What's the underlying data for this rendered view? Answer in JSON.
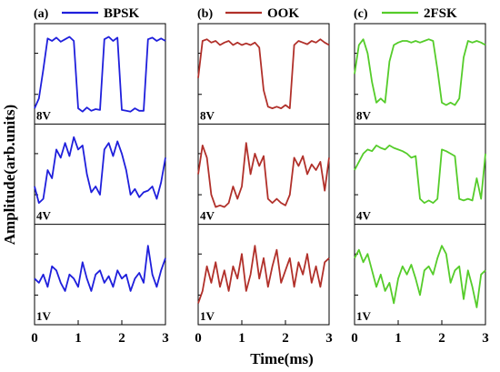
{
  "figure": {
    "ylabel": "Amplitude(arb.units)",
    "xlabel": "Time(ms)"
  },
  "chart_data": [
    {
      "type": "line",
      "panel_label": "(a)",
      "legend": "BPSK",
      "color": "#1f1fdc",
      "xlim": [
        0,
        3
      ],
      "xticks": [
        "0",
        "1",
        "2",
        "3"
      ],
      "legend_position": "top",
      "grid": false,
      "x": [
        0,
        0.1,
        0.2,
        0.3,
        0.4,
        0.5,
        0.6,
        0.7,
        0.8,
        0.9,
        1.0,
        1.1,
        1.2,
        1.3,
        1.4,
        1.5,
        1.6,
        1.7,
        1.8,
        1.9,
        2.0,
        2.1,
        2.2,
        2.3,
        2.4,
        2.5,
        2.6,
        2.7,
        2.8,
        2.9,
        3.0
      ],
      "traces": [
        {
          "label": "8V",
          "values": [
            0.08,
            0.2,
            0.55,
            0.93,
            0.9,
            0.94,
            0.89,
            0.92,
            0.95,
            0.9,
            0.08,
            0.04,
            0.09,
            0.05,
            0.07,
            0.06,
            0.92,
            0.95,
            0.9,
            0.94,
            0.06,
            0.05,
            0.04,
            0.08,
            0.05,
            0.05,
            0.92,
            0.94,
            0.9,
            0.93,
            0.9
          ]
        },
        {
          "label": "4V",
          "values": [
            0.35,
            0.15,
            0.2,
            0.55,
            0.45,
            0.8,
            0.7,
            0.88,
            0.72,
            0.95,
            0.8,
            0.85,
            0.5,
            0.28,
            0.35,
            0.25,
            0.8,
            0.88,
            0.72,
            0.9,
            0.75,
            0.55,
            0.25,
            0.32,
            0.22,
            0.28,
            0.3,
            0.35,
            0.2,
            0.4,
            0.7
          ]
        },
        {
          "label": "1V",
          "values": [
            0.45,
            0.4,
            0.5,
            0.35,
            0.6,
            0.55,
            0.4,
            0.3,
            0.5,
            0.45,
            0.35,
            0.65,
            0.45,
            0.3,
            0.5,
            0.55,
            0.4,
            0.48,
            0.35,
            0.55,
            0.45,
            0.5,
            0.3,
            0.45,
            0.52,
            0.4,
            0.85,
            0.5,
            0.35,
            0.55,
            0.7
          ]
        }
      ]
    },
    {
      "type": "line",
      "panel_label": "(b)",
      "legend": "OOK",
      "color": "#b1302a",
      "xlim": [
        0,
        3
      ],
      "xticks": [
        "0",
        "1",
        "2",
        "3"
      ],
      "legend_position": "top",
      "grid": false,
      "x": [
        0,
        0.1,
        0.2,
        0.3,
        0.4,
        0.5,
        0.6,
        0.7,
        0.8,
        0.9,
        1.0,
        1.1,
        1.2,
        1.3,
        1.4,
        1.5,
        1.6,
        1.7,
        1.8,
        1.9,
        2.0,
        2.1,
        2.2,
        2.3,
        2.4,
        2.5,
        2.6,
        2.7,
        2.8,
        2.9,
        3.0
      ],
      "traces": [
        {
          "label": "8V",
          "values": [
            0.45,
            0.9,
            0.92,
            0.88,
            0.9,
            0.85,
            0.88,
            0.9,
            0.85,
            0.88,
            0.85,
            0.87,
            0.85,
            0.88,
            0.82,
            0.3,
            0.1,
            0.08,
            0.1,
            0.08,
            0.12,
            0.08,
            0.85,
            0.9,
            0.88,
            0.86,
            0.9,
            0.88,
            0.92,
            0.88,
            0.85
          ]
        },
        {
          "label": "4V",
          "values": [
            0.5,
            0.85,
            0.7,
            0.25,
            0.1,
            0.12,
            0.1,
            0.15,
            0.35,
            0.2,
            0.35,
            0.88,
            0.5,
            0.75,
            0.6,
            0.72,
            0.2,
            0.15,
            0.2,
            0.15,
            0.12,
            0.25,
            0.7,
            0.6,
            0.72,
            0.5,
            0.62,
            0.55,
            0.65,
            0.3,
            0.7
          ]
        },
        {
          "label": "1V",
          "values": [
            0.15,
            0.3,
            0.6,
            0.4,
            0.65,
            0.35,
            0.55,
            0.3,
            0.6,
            0.45,
            0.75,
            0.3,
            0.5,
            0.85,
            0.45,
            0.7,
            0.35,
            0.6,
            0.8,
            0.4,
            0.55,
            0.7,
            0.35,
            0.65,
            0.5,
            0.75,
            0.4,
            0.6,
            0.35,
            0.65,
            0.7
          ]
        }
      ]
    },
    {
      "type": "line",
      "panel_label": "(c)",
      "legend": "2FSK",
      "color": "#55cc2a",
      "xlim": [
        0,
        3
      ],
      "xticks": [
        "0",
        "1",
        "2",
        "3"
      ],
      "legend_position": "top",
      "grid": false,
      "x": [
        0,
        0.1,
        0.2,
        0.3,
        0.4,
        0.5,
        0.6,
        0.7,
        0.8,
        0.9,
        1.0,
        1.1,
        1.2,
        1.3,
        1.4,
        1.5,
        1.6,
        1.7,
        1.8,
        1.9,
        2.0,
        2.1,
        2.2,
        2.3,
        2.4,
        2.5,
        2.6,
        2.7,
        2.8,
        2.9,
        3.0
      ],
      "traces": [
        {
          "label": "8V",
          "values": [
            0.5,
            0.85,
            0.92,
            0.75,
            0.4,
            0.15,
            0.2,
            0.15,
            0.65,
            0.85,
            0.88,
            0.9,
            0.9,
            0.88,
            0.9,
            0.88,
            0.9,
            0.92,
            0.9,
            0.55,
            0.15,
            0.12,
            0.15,
            0.12,
            0.2,
            0.7,
            0.9,
            0.88,
            0.9,
            0.88,
            0.85
          ]
        },
        {
          "label": "4V",
          "values": [
            0.55,
            0.65,
            0.75,
            0.8,
            0.78,
            0.85,
            0.82,
            0.8,
            0.85,
            0.82,
            0.8,
            0.78,
            0.75,
            0.7,
            0.72,
            0.2,
            0.15,
            0.18,
            0.15,
            0.2,
            0.8,
            0.78,
            0.75,
            0.72,
            0.2,
            0.18,
            0.2,
            0.18,
            0.45,
            0.2,
            0.75
          ]
        },
        {
          "label": "1V",
          "values": [
            0.7,
            0.8,
            0.65,
            0.75,
            0.55,
            0.35,
            0.5,
            0.3,
            0.4,
            0.15,
            0.45,
            0.6,
            0.5,
            0.62,
            0.45,
            0.25,
            0.55,
            0.6,
            0.5,
            0.7,
            0.85,
            0.75,
            0.4,
            0.55,
            0.6,
            0.2,
            0.55,
            0.35,
            0.1,
            0.5,
            0.55
          ]
        }
      ]
    }
  ]
}
